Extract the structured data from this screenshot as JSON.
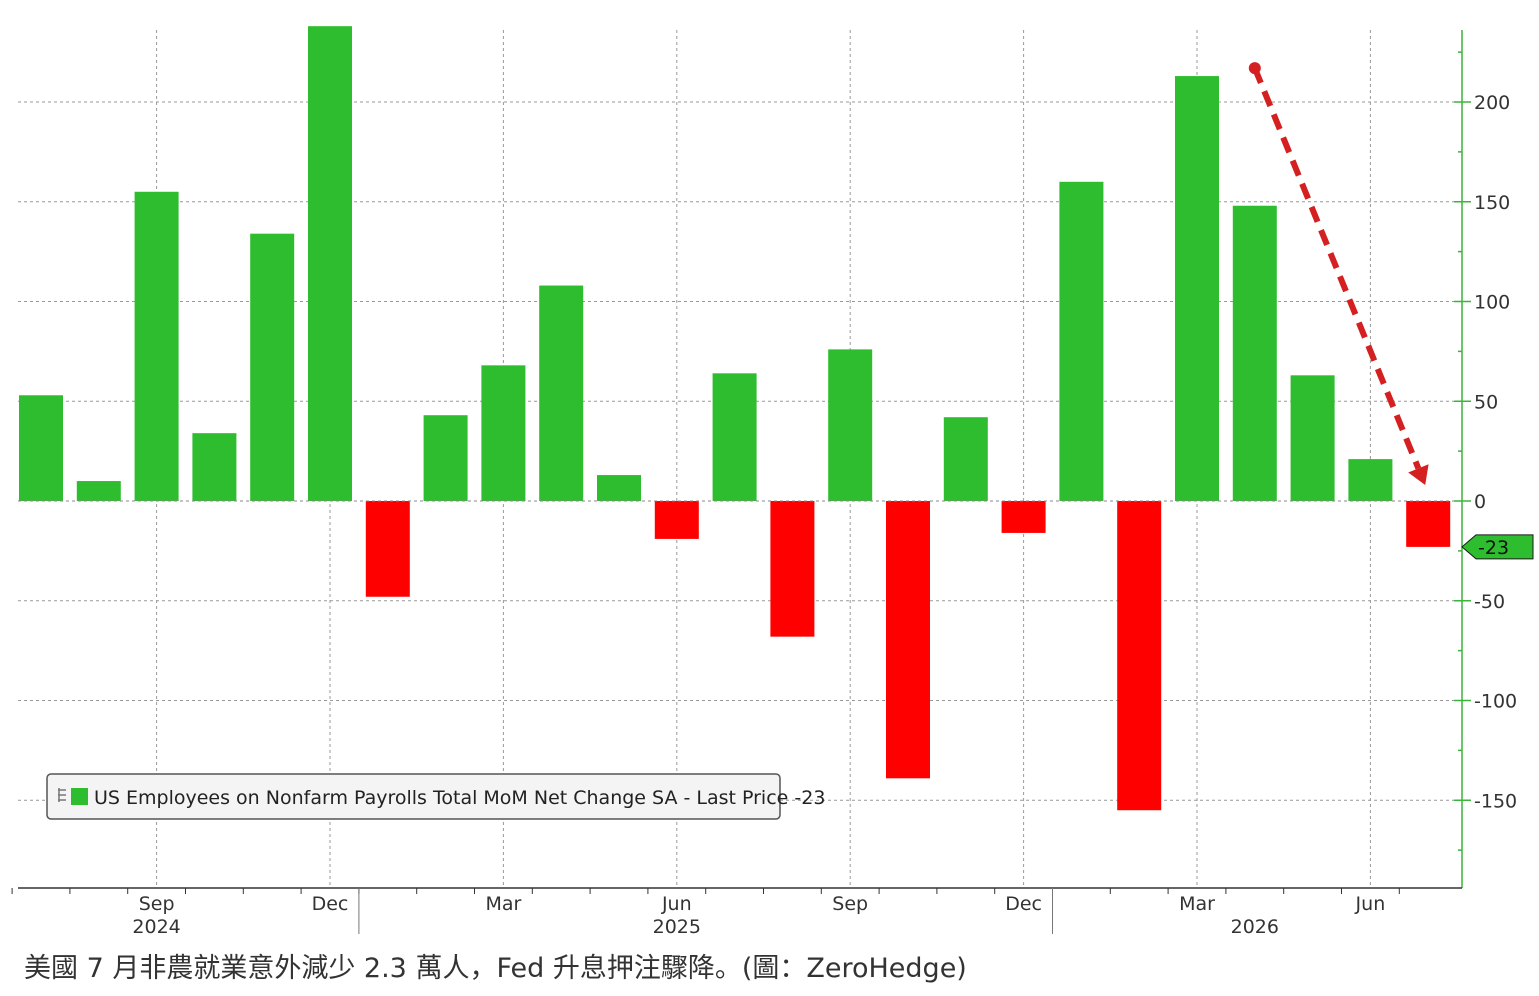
{
  "chart_data": {
    "type": "bar",
    "legend": {
      "text": "US Employees on Nonfarm Payrolls Total MoM Net Change SA - Last Price -23",
      "placement": "bottom-left",
      "swatch_color": "#2ebd2e"
    },
    "series": [
      {
        "name": "US Employees on Nonfarm Payrolls Total MoM Net Change SA",
        "values": [
          53,
          10,
          155,
          34,
          134,
          238,
          -48,
          43,
          68,
          108,
          13,
          -19,
          64,
          -68,
          76,
          -139,
          42,
          -16,
          160,
          -155,
          213,
          148,
          63,
          21,
          -23
        ]
      }
    ],
    "x": [
      "2024-07",
      "2024-08",
      "2024-09",
      "2024-10",
      "2024-11",
      "2024-12",
      "2025-01",
      "2025-02",
      "2025-03",
      "2025-04",
      "2025-05",
      "2025-06",
      "2025-07",
      "2025-08",
      "2025-09",
      "2025-10",
      "2025-11",
      "2025-12",
      "2026-01",
      "2026-02",
      "2026-03",
      "2026-04",
      "2026-05",
      "2026-06",
      "2026-07"
    ],
    "month_labels": [
      {
        "x": "2024-09",
        "label": "Sep"
      },
      {
        "x": "2024-12",
        "label": "Dec"
      },
      {
        "x": "2025-03",
        "label": "Mar"
      },
      {
        "x": "2025-06",
        "label": "Jun"
      },
      {
        "x": "2025-09",
        "label": "Sep"
      },
      {
        "x": "2025-12",
        "label": "Dec"
      },
      {
        "x": "2026-03",
        "label": "Mar"
      },
      {
        "x": "2026-06",
        "label": "Jun"
      }
    ],
    "year_labels": [
      {
        "x": "2024-09",
        "label": "2024"
      },
      {
        "x": "2025-06",
        "label": "2025"
      },
      {
        "x": "2026-04",
        "label": "2026"
      }
    ],
    "y_axis": {
      "position": "right",
      "ticks": [
        200,
        150,
        100,
        50,
        0,
        -50,
        -100,
        -150
      ],
      "tick_labels": [
        "200",
        "150",
        "100",
        "50",
        "0",
        "-50",
        "-100",
        "-150"
      ],
      "ylim": [
        -195,
        237
      ]
    },
    "last_price": {
      "value": -23,
      "label": "-23"
    },
    "annotation": {
      "type": "dashed-arrow",
      "from": {
        "x": "2026-04",
        "y": 217
      },
      "to": {
        "x": "2026-07",
        "y": 8
      },
      "color": "#d42020"
    },
    "grid": true,
    "colors": {
      "positive": "#2ebd2e",
      "negative": "#ff0000",
      "axis": "#3cb43c",
      "grid": "#999999"
    }
  },
  "caption": "美國 7 月非農就業意外減少 2.3 萬人，Fed 升息押注驟降。(圖：ZeroHedge)"
}
